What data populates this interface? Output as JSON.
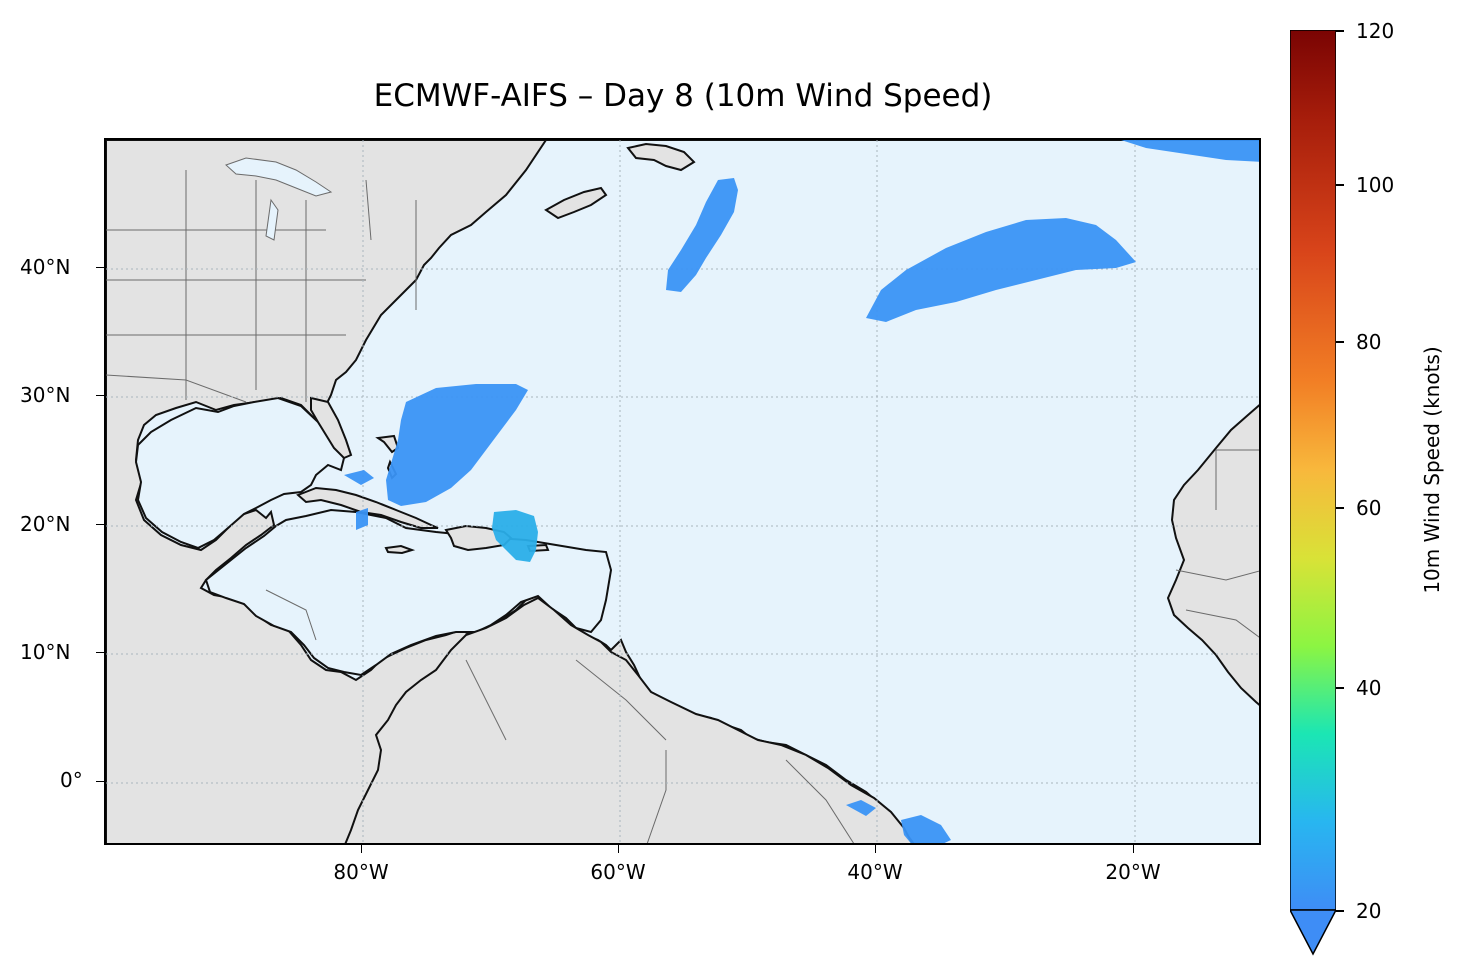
{
  "title": "ECMWF-AIFS – Day 8 (10m Wind Speed)",
  "map": {
    "extent": {
      "lon_min": -100,
      "lon_max": -10,
      "lat_min": -5,
      "lat_max": 50
    },
    "lat_ticks": [
      {
        "value": 40,
        "label": "40°N"
      },
      {
        "value": 30,
        "label": "30°N"
      },
      {
        "value": 20,
        "label": "20°N"
      },
      {
        "value": 10,
        "label": "10°N"
      },
      {
        "value": 0,
        "label": "0°"
      }
    ],
    "lon_ticks": [
      {
        "value": -80,
        "label": "80°W"
      },
      {
        "value": -60,
        "label": "60°W"
      },
      {
        "value": -40,
        "label": "40°W"
      },
      {
        "value": -20,
        "label": "20°W"
      }
    ],
    "ocean_color": "#e6f3fc",
    "land_color": "#e3e3e3",
    "coastline_color": "#111111",
    "border_color": "#6b6b6b",
    "gridlines": "dotted"
  },
  "colorbar": {
    "label": "10m Wind Speed (knots)",
    "min": 20,
    "max": 120,
    "extend": "min",
    "ticks": [
      {
        "value": 120,
        "label": "120"
      },
      {
        "value": 100,
        "label": "100"
      },
      {
        "value": 80,
        "label": "80"
      },
      {
        "value": 60,
        "label": "60"
      },
      {
        "value": 40,
        "label": "40"
      },
      {
        "value": 20,
        "label": "20"
      }
    ],
    "colormap": [
      "#3e8df6",
      "#28b6f0",
      "#1be6b4",
      "#8cf542",
      "#d9e237",
      "#f8b83c",
      "#f27f25",
      "#d8441a",
      "#a61d0b",
      "#7a0403"
    ]
  },
  "wind_regions": [
    {
      "name": "bahamas-wind",
      "speed_kt": 25,
      "center": [
        -74,
        27
      ],
      "color": "#3a93f5"
    },
    {
      "name": "hispaniola-wind",
      "speed_kt": 30,
      "center": [
        -68,
        19.5
      ],
      "color": "#2aaee9"
    },
    {
      "name": "northwest-atlantic-wind",
      "speed_kt": 24,
      "center": [
        -55,
        42
      ],
      "color": "#3a93f5"
    },
    {
      "name": "central-atlantic-wind",
      "speed_kt": 24,
      "center": [
        -30,
        40
      ],
      "color": "#3a93f5"
    },
    {
      "name": "northeast-atlantic-wind",
      "speed_kt": 22,
      "center": [
        -15,
        49
      ],
      "color": "#3a93f5"
    },
    {
      "name": "equatorial-wind",
      "speed_kt": 22,
      "center": [
        -36,
        -4
      ],
      "color": "#3a93f5"
    }
  ]
}
